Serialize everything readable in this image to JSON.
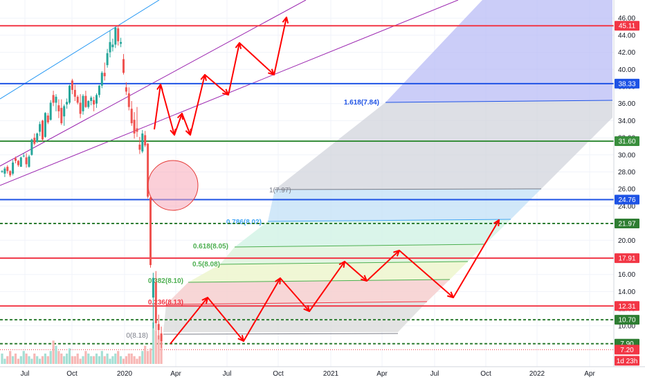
{
  "chart_data": {
    "type": "candlestick",
    "y_axis": {
      "position": "right",
      "ylim": [
        6.0,
        47.0
      ],
      "ticks": [
        "46.00",
        "44.00",
        "42.00",
        "40.00",
        "38.00",
        "36.00",
        "34.00",
        "32.00",
        "30.00",
        "28.00",
        "26.00",
        "24.00",
        "22.00",
        "20.00",
        "18.00",
        "16.00",
        "14.00",
        "12.00",
        "10.00"
      ]
    },
    "x_axis": {
      "ticks": [
        "Jul",
        "Oct",
        "2020",
        "Apr",
        "Jul",
        "Oct",
        "2021",
        "Apr",
        "Jul",
        "Oct",
        "2022",
        "Apr"
      ]
    },
    "price_levels": [
      {
        "value": 45.11,
        "label": "45.11",
        "color": "#f23645",
        "style": "solid"
      },
      {
        "value": 38.33,
        "label": "38.33",
        "color": "#1e53e5",
        "style": "solid"
      },
      {
        "value": 31.6,
        "label": "31.60",
        "color": "#388e3c",
        "style": "solid"
      },
      {
        "value": 24.76,
        "label": "24.76",
        "color": "#1e53e5",
        "style": "solid"
      },
      {
        "value": 21.97,
        "label": "21.97",
        "color": "#2e7d32",
        "style": "dashed"
      },
      {
        "value": 17.91,
        "label": "17.91",
        "color": "#f23645",
        "style": "solid"
      },
      {
        "value": 12.31,
        "label": "12.31",
        "color": "#f23645",
        "style": "solid"
      },
      {
        "value": 10.7,
        "label": "10.70",
        "color": "#2e7d32",
        "style": "dashed"
      },
      {
        "value": 7.9,
        "label": "7.90",
        "color": "#2e7d32",
        "style": "dashed"
      },
      {
        "value": 7.2,
        "label": "7.20",
        "color": "#f23645",
        "style": "dotted"
      }
    ],
    "countdown_label": "1d 23h",
    "fib_levels": [
      {
        "label": "0(8.18)",
        "color": "#787b86"
      },
      {
        "label": "0.236(8.13)",
        "color": "#f23645"
      },
      {
        "label": "0.382(8.10)",
        "color": "#4caf50"
      },
      {
        "label": "0.5(8.08)",
        "color": "#4caf50"
      },
      {
        "label": "0.618(8.05)",
        "color": "#4caf50"
      },
      {
        "label": "0.786(8.02)",
        "color": "#42a5f5"
      },
      {
        "label": "1(7.97)",
        "color": "#787b86"
      },
      {
        "label": "1.618(7.84)",
        "color": "#1e53e5"
      }
    ],
    "colors": {
      "up": "#26a69a",
      "down": "#ef5350",
      "arrow": "#ff0000",
      "channel": "#9c27b0",
      "trendline": "#2196f3"
    },
    "candles": [
      [
        28.0,
        28.2,
        27.9,
        28.1
      ],
      [
        27.8,
        28.6,
        27.4,
        28.4
      ],
      [
        28.6,
        28.8,
        27.8,
        28.1
      ],
      [
        28.1,
        28.2,
        27.4,
        27.6
      ],
      [
        27.8,
        29.4,
        27.6,
        29.1
      ],
      [
        29.6,
        29.8,
        29.0,
        29.3
      ],
      [
        29.3,
        29.4,
        28.6,
        28.8
      ],
      [
        28.6,
        29.8,
        28.6,
        29.7
      ],
      [
        29.9,
        30.2,
        29.7,
        29.9
      ],
      [
        29.7,
        30.2,
        28.5,
        28.9
      ],
      [
        28.6,
        30.0,
        28.5,
        29.8
      ],
      [
        30.0,
        31.9,
        29.9,
        31.8
      ],
      [
        32.0,
        32.5,
        31.1,
        31.3
      ],
      [
        31.5,
        32.6,
        31.4,
        32.5
      ],
      [
        32.7,
        33.9,
        32.2,
        33.6
      ],
      [
        34.0,
        34.1,
        31.6,
        31.8
      ],
      [
        32.1,
        35.0,
        32.0,
        34.9
      ],
      [
        34.6,
        34.9,
        33.6,
        33.8
      ],
      [
        34.1,
        36.4,
        34.0,
        36.1
      ],
      [
        37.0,
        37.5,
        35.7,
        36.1
      ],
      [
        36.1,
        37.1,
        35.1,
        36.8
      ],
      [
        35.8,
        36.5,
        34.3,
        35.1
      ],
      [
        35.5,
        36.5,
        33.5,
        33.7
      ],
      [
        34.5,
        35.9,
        33.4,
        35.7
      ],
      [
        35.9,
        36.6,
        35.4,
        36.2
      ],
      [
        36.1,
        38.2,
        35.9,
        38.1
      ],
      [
        38.7,
        38.9,
        37.1,
        37.6
      ],
      [
        37.6,
        38.2,
        36.3,
        36.8
      ],
      [
        36.8,
        37.0,
        35.9,
        36.1
      ],
      [
        36.1,
        37.1,
        34.3,
        34.8
      ],
      [
        35.1,
        37.1,
        34.7,
        36.9
      ],
      [
        36.9,
        37.5,
        35.5,
        35.6
      ],
      [
        35.6,
        36.4,
        35.4,
        36.3
      ],
      [
        36.3,
        36.9,
        35.8,
        36.7
      ],
      [
        36.4,
        36.8,
        35.1,
        35.9
      ],
      [
        36.0,
        37.2,
        35.5,
        37.0
      ],
      [
        37.0,
        38.2,
        36.7,
        38.1
      ],
      [
        38.1,
        39.8,
        37.8,
        39.6
      ],
      [
        39.6,
        40.8,
        38.7,
        39.2
      ],
      [
        40.5,
        42.4,
        40.2,
        41.9
      ],
      [
        42.0,
        44.5,
        41.4,
        43.2
      ],
      [
        42.6,
        43.6,
        42.1,
        42.9
      ],
      [
        42.9,
        45.0,
        42.5,
        44.9
      ],
      [
        44.8,
        45.2,
        42.8,
        43.3
      ],
      [
        43.0,
        43.7,
        42.6,
        43.2
      ],
      [
        41.2,
        41.8,
        39.4,
        39.6
      ],
      [
        37.9,
        38.5,
        37.0,
        37.4
      ],
      [
        37.2,
        37.9,
        35.2,
        35.6
      ],
      [
        35.4,
        36.3,
        33.4,
        33.7
      ],
      [
        34.1,
        35.0,
        31.9,
        32.5
      ],
      [
        33.1,
        35.6,
        32.1,
        32.7
      ],
      [
        31.2,
        32.1,
        30.1,
        30.6
      ],
      [
        30.4,
        32.9,
        30.2,
        32.5
      ],
      [
        32.3,
        32.8,
        30.9,
        31.1
      ],
      [
        31.3,
        31.4,
        24.9,
        25.1
      ],
      [
        25.0,
        25.1,
        16.8,
        17.1
      ],
      [
        13.3,
        16.2,
        9.7,
        15.6
      ],
      [
        15.1,
        16.4,
        9.5,
        10.3
      ],
      [
        10.2,
        11.3,
        8.4,
        9.5
      ],
      [
        9.1,
        9.9,
        7.4,
        8.2
      ]
    ],
    "volumes": [
      4,
      2,
      3,
      5,
      3,
      4,
      2,
      3,
      5,
      4,
      3,
      2,
      4,
      3,
      2,
      3,
      4,
      3,
      5,
      9,
      7,
      5,
      4,
      3,
      4,
      6,
      3,
      3,
      4,
      2,
      3,
      5,
      4,
      3,
      3,
      4,
      3,
      5,
      3,
      4,
      2,
      3,
      4,
      5,
      3,
      2,
      3,
      4,
      4,
      3,
      2,
      3,
      5,
      7,
      5,
      6,
      16,
      13,
      11,
      9
    ]
  }
}
